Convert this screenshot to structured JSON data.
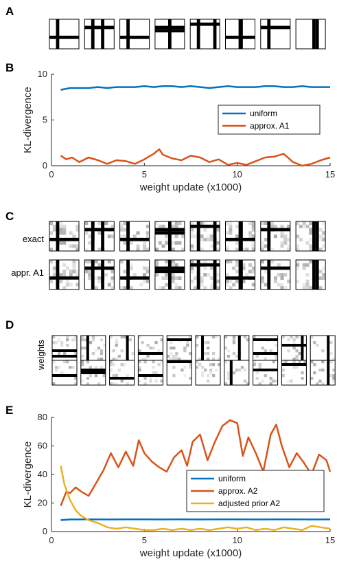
{
  "panels": {
    "a": {
      "letter": "A"
    },
    "b": {
      "letter": "B"
    },
    "c": {
      "letter": "C",
      "row_labels": [
        "exact",
        "appr. A1"
      ]
    },
    "d": {
      "letter": "D",
      "row_label": "weights"
    },
    "e": {
      "letter": "E"
    }
  },
  "colors": {
    "uniform": "#0072BD",
    "approx": "#D95319",
    "adjusted": "#EDB120"
  },
  "chart_data": [
    {
      "id": "B",
      "type": "line",
      "xlabel": "weight update (x1000)",
      "ylabel": "KL-divergence",
      "xlim": [
        0,
        15
      ],
      "ylim": [
        0,
        10
      ],
      "xticks": [
        0,
        5,
        10,
        15
      ],
      "yticks": [
        0,
        5,
        10
      ],
      "legend_position": "top-right",
      "series": [
        {
          "name": "uniform",
          "color": "#0072BD",
          "x": [
            0.5,
            1,
            1.5,
            2,
            2.5,
            3,
            3.5,
            4,
            4.5,
            5,
            5.5,
            6,
            6.5,
            7,
            7.5,
            8,
            8.5,
            9,
            9.5,
            10,
            10.5,
            11,
            11.5,
            12,
            12.5,
            13,
            13.5,
            14,
            14.5,
            15
          ],
          "y": [
            8.3,
            8.5,
            8.5,
            8.5,
            8.6,
            8.5,
            8.6,
            8.6,
            8.6,
            8.7,
            8.6,
            8.7,
            8.7,
            8.6,
            8.7,
            8.6,
            8.5,
            8.6,
            8.7,
            8.6,
            8.6,
            8.6,
            8.7,
            8.7,
            8.6,
            8.6,
            8.7,
            8.6,
            8.6,
            8.6
          ]
        },
        {
          "name": "approx. A1",
          "color": "#D95319",
          "x": [
            0.5,
            0.8,
            1.1,
            1.5,
            2,
            2.5,
            3,
            3.5,
            4,
            4.5,
            5,
            5.5,
            5.8,
            6,
            6.5,
            7,
            7.5,
            8,
            8.5,
            9,
            9.5,
            10,
            10.5,
            11,
            11.5,
            12,
            12.5,
            13,
            13.5,
            14,
            14.5,
            15
          ],
          "y": [
            1.1,
            0.7,
            0.9,
            0.4,
            0.9,
            0.6,
            0.2,
            0.6,
            0.5,
            0.2,
            0.7,
            1.3,
            1.8,
            1.2,
            0.8,
            0.6,
            1.1,
            0.9,
            0.4,
            0.7,
            0.1,
            0.3,
            0.1,
            0.5,
            0.9,
            1.0,
            1.3,
            0.4,
            0.0,
            0.2,
            0.6,
            0.9
          ]
        }
      ]
    },
    {
      "id": "E",
      "type": "line",
      "xlabel": "weight update (x1000)",
      "ylabel": "KL-divergence",
      "xlim": [
        0,
        15
      ],
      "ylim": [
        0,
        80
      ],
      "xticks": [
        0,
        5,
        10,
        15
      ],
      "yticks": [
        0,
        20,
        40,
        60,
        80
      ],
      "legend_position": "bottom-right",
      "series": [
        {
          "name": "uniform",
          "color": "#0072BD",
          "x": [
            0.5,
            1,
            2,
            3,
            4,
            5,
            6,
            7,
            8,
            9,
            10,
            11,
            12,
            13,
            14,
            15
          ],
          "y": [
            8,
            8.5,
            8.6,
            8.5,
            8.6,
            8.6,
            8.5,
            8.6,
            8.5,
            8.6,
            8.6,
            8.5,
            8.6,
            8.6,
            8.5,
            8.6
          ]
        },
        {
          "name": "approx. A2",
          "color": "#D95319",
          "x": [
            0.5,
            0.8,
            1,
            1.3,
            1.6,
            2,
            2.4,
            2.8,
            3.2,
            3.6,
            4,
            4.4,
            4.7,
            5,
            5.4,
            5.8,
            6.2,
            6.6,
            7,
            7.3,
            7.6,
            8,
            8.4,
            8.8,
            9.2,
            9.6,
            10,
            10.3,
            10.6,
            11,
            11.4,
            11.8,
            12.1,
            12.4,
            12.8,
            13.2,
            13.6,
            14,
            14.4,
            14.8,
            15
          ],
          "y": [
            18,
            28,
            27,
            31,
            28,
            25,
            34,
            43,
            55,
            45,
            56,
            46,
            64,
            55,
            49,
            45,
            42,
            52,
            57,
            46,
            63,
            68,
            50,
            63,
            74,
            78,
            76,
            53,
            66,
            55,
            42,
            68,
            75,
            60,
            45,
            55,
            48,
            40,
            54,
            50,
            42
          ]
        },
        {
          "name": "adjusted prior A2",
          "color": "#EDB120",
          "x": [
            0.5,
            0.7,
            1,
            1.3,
            1.6,
            2,
            2.5,
            3,
            3.5,
            4,
            4.5,
            5,
            5.5,
            6,
            6.5,
            7,
            7.5,
            8,
            8.5,
            9,
            9.5,
            10,
            10.5,
            11,
            11.5,
            12,
            12.5,
            13,
            13.5,
            14,
            14.5,
            15
          ],
          "y": [
            46,
            33,
            22,
            15,
            11,
            8,
            6,
            3,
            2,
            3,
            2,
            1,
            1,
            2,
            1,
            2,
            1,
            2,
            1,
            2,
            3,
            2,
            3,
            1,
            2,
            1,
            3,
            2,
            1,
            4,
            3,
            2
          ]
        }
      ]
    }
  ]
}
